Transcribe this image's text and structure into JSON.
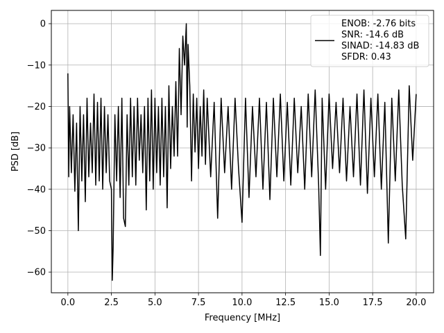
{
  "chart_data": {
    "type": "line",
    "title": "",
    "xlabel": "Frequency [MHz]",
    "ylabel": "PSD [dB]",
    "xlim": [
      -0.95,
      21.0
    ],
    "ylim": [
      -65.0,
      3.2
    ],
    "xticks": [
      0.0,
      2.5,
      5.0,
      7.5,
      10.0,
      12.5,
      15.0,
      17.5,
      20.0
    ],
    "xtick_labels": [
      "0.0",
      "2.5",
      "5.0",
      "7.5",
      "10.0",
      "12.5",
      "15.0",
      "17.5",
      "20.0"
    ],
    "yticks": [
      0,
      -10,
      -20,
      -30,
      -40,
      -50,
      -60
    ],
    "ytick_labels": [
      "0",
      "−10",
      "−20",
      "−30",
      "−40",
      "−50",
      "−60"
    ],
    "grid": true,
    "legend_position": "top-right",
    "line_color": "#000000",
    "legend": [
      "ENOB: -2.76 bits",
      "SNR: -14.6 dB",
      "SINAD: -14.83 dB",
      "SFDR: 0.43"
    ],
    "series": [
      {
        "x": [
          0.0,
          0.05,
          0.1,
          0.2,
          0.3,
          0.4,
          0.5,
          0.6,
          0.7,
          0.8,
          0.9,
          1.0,
          1.1,
          1.2,
          1.3,
          1.4,
          1.5,
          1.6,
          1.7,
          1.8,
          1.9,
          2.0,
          2.1,
          2.2,
          2.3,
          2.4,
          2.5,
          2.55,
          2.6,
          2.7,
          2.8,
          2.9,
          3.0,
          3.1,
          3.2,
          3.3,
          3.4,
          3.5,
          3.6,
          3.7,
          3.8,
          3.9,
          4.0,
          4.1,
          4.2,
          4.3,
          4.4,
          4.5,
          4.6,
          4.7,
          4.8,
          4.9,
          5.0,
          5.1,
          5.2,
          5.3,
          5.4,
          5.5,
          5.6,
          5.7,
          5.8,
          5.9,
          6.0,
          6.1,
          6.2,
          6.3,
          6.4,
          6.5,
          6.6,
          6.7,
          6.8,
          6.85,
          6.9,
          7.0,
          7.1,
          7.2,
          7.3,
          7.4,
          7.5,
          7.6,
          7.7,
          7.8,
          7.9,
          8.0,
          8.2,
          8.4,
          8.6,
          8.8,
          9.0,
          9.2,
          9.4,
          9.6,
          9.8,
          10.0,
          10.2,
          10.4,
          10.6,
          10.8,
          11.0,
          11.2,
          11.4,
          11.6,
          11.8,
          12.0,
          12.2,
          12.4,
          12.6,
          12.8,
          13.0,
          13.2,
          13.4,
          13.6,
          13.8,
          14.0,
          14.2,
          14.4,
          14.5,
          14.6,
          14.8,
          15.0,
          15.2,
          15.4,
          15.6,
          15.8,
          16.0,
          16.2,
          16.4,
          16.6,
          16.8,
          17.0,
          17.2,
          17.4,
          17.6,
          17.8,
          18.0,
          18.2,
          18.4,
          18.6,
          18.8,
          19.0,
          19.2,
          19.4,
          19.6,
          19.8,
          20.0
        ],
        "y": [
          -12.0,
          -37.0,
          -20.0,
          -36.0,
          -22.0,
          -40.5,
          -24.0,
          -50.0,
          -20.0,
          -38.0,
          -22.0,
          -43.0,
          -18.0,
          -37.0,
          -24.0,
          -36.0,
          -17.0,
          -39.0,
          -19.0,
          -38.0,
          -18.0,
          -40.0,
          -20.0,
          -36.0,
          -22.0,
          -38.0,
          -40.0,
          -62.0,
          -54.0,
          -22.0,
          -38.0,
          -20.0,
          -42.0,
          -18.0,
          -47.0,
          -49.0,
          -22.0,
          -39.0,
          -18.0,
          -37.0,
          -20.0,
          -39.0,
          -18.0,
          -33.0,
          -22.0,
          -36.0,
          -20.0,
          -45.0,
          -18.0,
          -38.0,
          -16.0,
          -40.0,
          -18.0,
          -36.0,
          -20.0,
          -39.0,
          -18.0,
          -37.0,
          -20.0,
          -44.5,
          -15.0,
          -35.0,
          -20.0,
          -32.0,
          -14.0,
          -32.0,
          -6.0,
          -22.0,
          -3.0,
          -10.0,
          0.0,
          -25.0,
          -5.0,
          -15.0,
          -38.0,
          -17.0,
          -31.0,
          -18.0,
          -35.0,
          -20.0,
          -32.0,
          -16.0,
          -34.0,
          -18.0,
          -37.0,
          -19.0,
          -47.0,
          -18.0,
          -36.0,
          -20.0,
          -40.0,
          -18.0,
          -35.0,
          -48.0,
          -18.0,
          -42.0,
          -20.0,
          -37.0,
          -18.0,
          -40.0,
          -19.0,
          -42.5,
          -18.0,
          -37.0,
          -17.0,
          -38.0,
          -19.0,
          -39.0,
          -18.0,
          -36.0,
          -20.0,
          -40.0,
          -17.0,
          -37.0,
          -16.0,
          -39.0,
          -56.0,
          -18.0,
          -40.0,
          -17.0,
          -35.0,
          -19.0,
          -36.0,
          -18.0,
          -38.0,
          -20.0,
          -37.0,
          -17.0,
          -39.0,
          -16.0,
          -41.0,
          -18.0,
          -37.0,
          -17.0,
          -40.0,
          -19.0,
          -53.0,
          -18.0,
          -38.0,
          -16.0,
          -39.0,
          -52.0,
          -15.0,
          -33.0,
          -17.0
        ]
      }
    ]
  }
}
